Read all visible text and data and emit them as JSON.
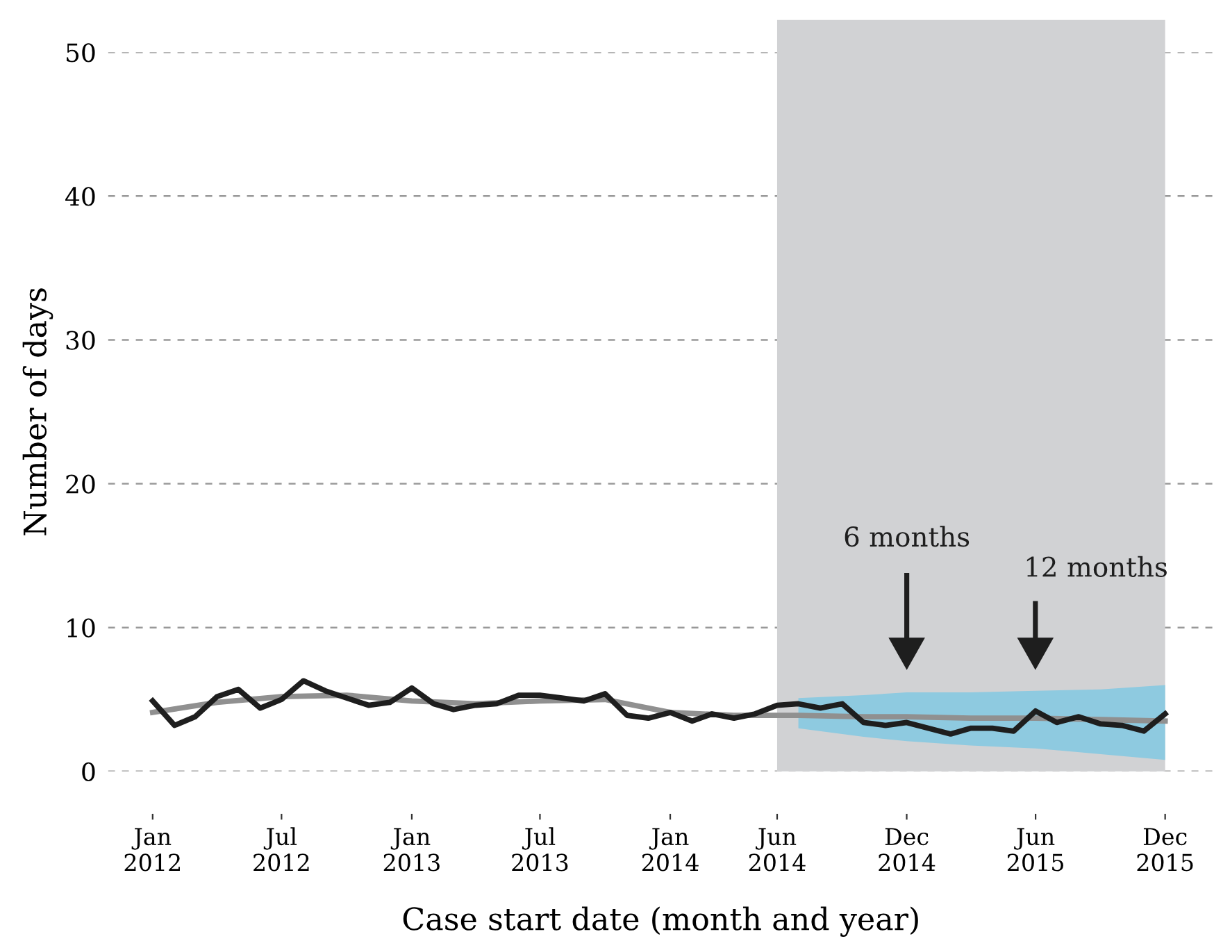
{
  "chart_data": {
    "type": "line",
    "xlabel": "Case start date (month and year)",
    "ylabel": "Number of days",
    "x": [
      "2012-01",
      "2012-02",
      "2012-03",
      "2012-04",
      "2012-05",
      "2012-06",
      "2012-07",
      "2012-08",
      "2012-09",
      "2012-10",
      "2012-11",
      "2012-12",
      "2013-01",
      "2013-02",
      "2013-03",
      "2013-04",
      "2013-05",
      "2013-06",
      "2013-07",
      "2013-08",
      "2013-09",
      "2013-10",
      "2013-11",
      "2013-12",
      "2014-01",
      "2014-02",
      "2014-03",
      "2014-04",
      "2014-05",
      "2014-06",
      "2014-07",
      "2014-08",
      "2014-09",
      "2014-10",
      "2014-11",
      "2014-12",
      "2015-01",
      "2015-02",
      "2015-03",
      "2015-04",
      "2015-05",
      "2015-06",
      "2015-07",
      "2015-08",
      "2015-09",
      "2015-10",
      "2015-11",
      "2015-12"
    ],
    "series": [
      {
        "color": "#8ecae0",
        "x": [
          "2014-07",
          "2014-10",
          "2014-12",
          "2015-03",
          "2015-06",
          "2015-09",
          "2015-12"
        ],
        "values": [
          null,
          null,
          null,
          null,
          null,
          null,
          null
        ],
        "lower": [
          3.0,
          2.4,
          2.1,
          1.8,
          1.6,
          1.2,
          0.8
        ],
        "upper": [
          5.1,
          5.3,
          5.5,
          5.5,
          5.6,
          5.7,
          6.0
        ]
      },
      {
        "color": "#909090",
        "x": [
          "2012-01",
          "2012-04",
          "2012-07",
          "2012-10",
          "2013-01",
          "2013-04",
          "2013-07",
          "2013-10",
          "2014-01",
          "2014-04",
          "2014-07",
          "2014-10",
          "2014-12",
          "2015-03",
          "2015-06",
          "2015-09",
          "2015-12"
        ],
        "values": [
          4.1,
          4.8,
          5.2,
          5.3,
          4.9,
          4.7,
          4.9,
          5.0,
          4.1,
          3.9,
          3.9,
          3.8,
          3.8,
          3.7,
          3.7,
          3.6,
          3.5
        ]
      },
      {
        "color": "#1e1e1e",
        "values": [
          4.9,
          3.2,
          3.8,
          5.2,
          5.7,
          4.4,
          5.0,
          6.3,
          5.6,
          5.1,
          4.6,
          4.8,
          5.8,
          4.7,
          4.3,
          4.6,
          4.7,
          5.3,
          5.3,
          5.1,
          4.9,
          5.4,
          3.9,
          3.7,
          4.1,
          3.5,
          4.0,
          3.7,
          4.0,
          4.6,
          4.7,
          4.4,
          4.7,
          3.4,
          3.2,
          3.4,
          3.0,
          2.6,
          3.0,
          3.0,
          2.8,
          4.2,
          3.4,
          3.8,
          3.3,
          3.2,
          2.8,
          4.0
        ]
      }
    ],
    "bands": [
      {
        "axis": "x",
        "from": "2014-06",
        "to": "2015-12",
        "color": "#d1d2d4"
      }
    ],
    "annotations": [
      "6 months",
      "12 months"
    ],
    "xlim": [
      "2011-10-30",
      "2016-02-08"
    ],
    "ylim": [
      0,
      50
    ],
    "xticks": [
      {
        "value": "2012-01",
        "label": "Jan\n2012"
      },
      {
        "value": "2012-07",
        "label": "Jul\n2012"
      },
      {
        "value": "2013-01",
        "label": "Jan\n2013"
      },
      {
        "value": "2013-07",
        "label": "Jul\n2013"
      },
      {
        "value": "2014-01",
        "label": "Jan\n2014"
      },
      {
        "value": "2014-06",
        "label": "Jun\n2014"
      },
      {
        "value": "2014-12",
        "label": "Dec\n2014"
      },
      {
        "value": "2015-06",
        "label": "Jun\n2015"
      },
      {
        "value": "2015-12",
        "label": "Dec\n2015"
      }
    ],
    "yticks": [
      0,
      10,
      20,
      30,
      40,
      50
    ],
    "grid": "y",
    "line_style": "solid",
    "marker": "none",
    "legend": false
  }
}
